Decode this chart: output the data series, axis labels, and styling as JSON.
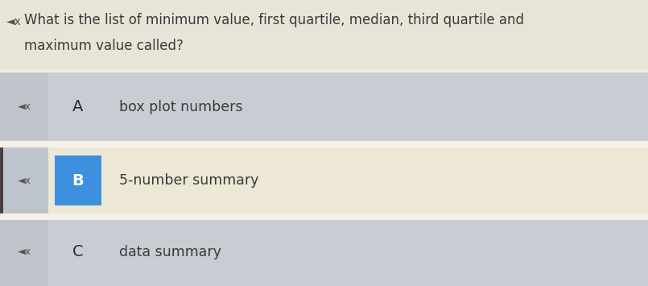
{
  "question_line1": "◄x  What is the list of minimum value, first quartile, median, third quartile and",
  "question_line2": "    maximum value called?",
  "options": [
    {
      "letter": "A",
      "text": "box plot numbers",
      "letter_bg": "#c8cdd4",
      "speaker_bg": "#c0c5cc",
      "row_bg": "#c8cdd4",
      "selected": false,
      "left_border": false
    },
    {
      "letter": "B",
      "text": "5-number summary",
      "letter_bg": "#3d8fe0",
      "speaker_bg": "#bec4cb",
      "row_bg": "#ede8d5",
      "selected": true,
      "left_border": true
    },
    {
      "letter": "C",
      "text": "data summary",
      "letter_bg": "#c8cdd4",
      "speaker_bg": "#c0c5cc",
      "row_bg": "#c8cdd4",
      "selected": false,
      "left_border": false
    }
  ],
  "bg_color": "#dbd8cc",
  "question_bg": "#e8e4d8",
  "font_size_question": 12.5,
  "font_size_option": 12.5,
  "text_color": "#3a3a3a"
}
